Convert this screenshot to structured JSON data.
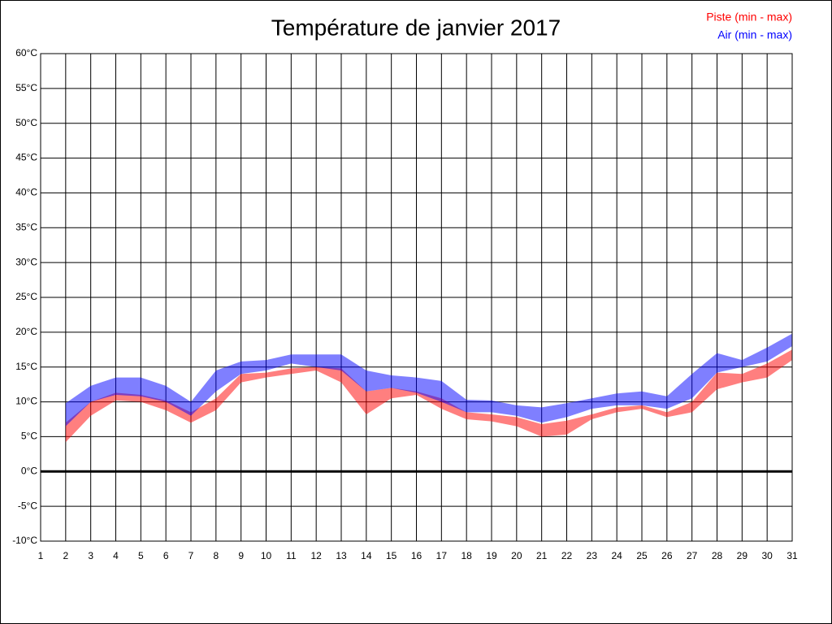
{
  "chart_data": {
    "type": "band",
    "title": "Température de janvier 2017",
    "x": [
      1,
      2,
      3,
      4,
      5,
      6,
      7,
      8,
      9,
      10,
      11,
      12,
      13,
      14,
      15,
      16,
      17,
      18,
      19,
      20,
      21,
      22,
      23,
      24,
      25,
      26,
      27,
      28,
      29,
      30,
      31
    ],
    "xlim": [
      1,
      31
    ],
    "xticks": [
      1,
      2,
      3,
      4,
      5,
      6,
      7,
      8,
      9,
      10,
      11,
      12,
      13,
      14,
      15,
      16,
      17,
      18,
      19,
      20,
      21,
      22,
      23,
      24,
      25,
      26,
      27,
      28,
      29,
      30,
      31
    ],
    "ylim": [
      -10,
      60
    ],
    "yticks": [
      {
        "value": -10,
        "label": "-10°C"
      },
      {
        "value": -5,
        "label": "-5°C"
      },
      {
        "value": 0,
        "label": "0°C"
      },
      {
        "value": 5,
        "label": "5°C"
      },
      {
        "value": 10,
        "label": "10°C"
      },
      {
        "value": 15,
        "label": "15°C"
      },
      {
        "value": 20,
        "label": "20°C"
      },
      {
        "value": 25,
        "label": "25°C"
      },
      {
        "value": 30,
        "label": "30°C"
      },
      {
        "value": 35,
        "label": "35°C"
      },
      {
        "value": 40,
        "label": "40°C"
      },
      {
        "value": 45,
        "label": "45°C"
      },
      {
        "value": 50,
        "label": "50°C"
      },
      {
        "value": 55,
        "label": "55°C"
      },
      {
        "value": 60,
        "label": "60°C"
      }
    ],
    "grid": true,
    "legend": "top-right",
    "series": [
      {
        "name": "Piste (min - max)",
        "color": "#ff0000",
        "min": [
          null,
          4.2,
          8.0,
          10.2,
          10.0,
          8.8,
          7.0,
          8.8,
          12.8,
          13.5,
          14.0,
          14.5,
          12.8,
          8.2,
          10.5,
          11.0,
          9.0,
          7.5,
          7.2,
          6.5,
          5.0,
          5.3,
          7.5,
          8.5,
          9.0,
          7.8,
          8.5,
          11.8,
          12.8,
          13.5,
          16.0
        ],
        "max": [
          null,
          7.0,
          10.0,
          11.3,
          11.0,
          10.2,
          8.5,
          10.5,
          14.0,
          14.2,
          14.8,
          15.0,
          14.8,
          11.5,
          12.0,
          11.5,
          10.5,
          8.5,
          8.2,
          7.8,
          6.8,
          7.3,
          8.2,
          9.2,
          9.5,
          8.5,
          10.0,
          14.2,
          14.0,
          15.5,
          17.5
        ]
      },
      {
        "name": "Air (min - max)",
        "color": "#0000ff",
        "min": [
          null,
          6.5,
          10.0,
          11.0,
          10.8,
          10.0,
          8.0,
          11.5,
          14.0,
          14.5,
          15.5,
          15.0,
          14.5,
          11.5,
          12.0,
          11.3,
          10.0,
          8.5,
          8.5,
          8.0,
          7.0,
          7.8,
          9.0,
          9.5,
          9.5,
          9.0,
          10.5,
          14.2,
          15.0,
          15.8,
          18.0
        ],
        "max": [
          null,
          9.8,
          12.3,
          13.5,
          13.5,
          12.3,
          10.0,
          14.5,
          15.8,
          16.0,
          16.8,
          16.8,
          16.8,
          14.5,
          13.8,
          13.5,
          13.0,
          10.3,
          10.2,
          9.5,
          9.2,
          9.8,
          10.5,
          11.2,
          11.5,
          10.8,
          14.0,
          17.0,
          16.0,
          17.8,
          19.8
        ]
      }
    ]
  }
}
